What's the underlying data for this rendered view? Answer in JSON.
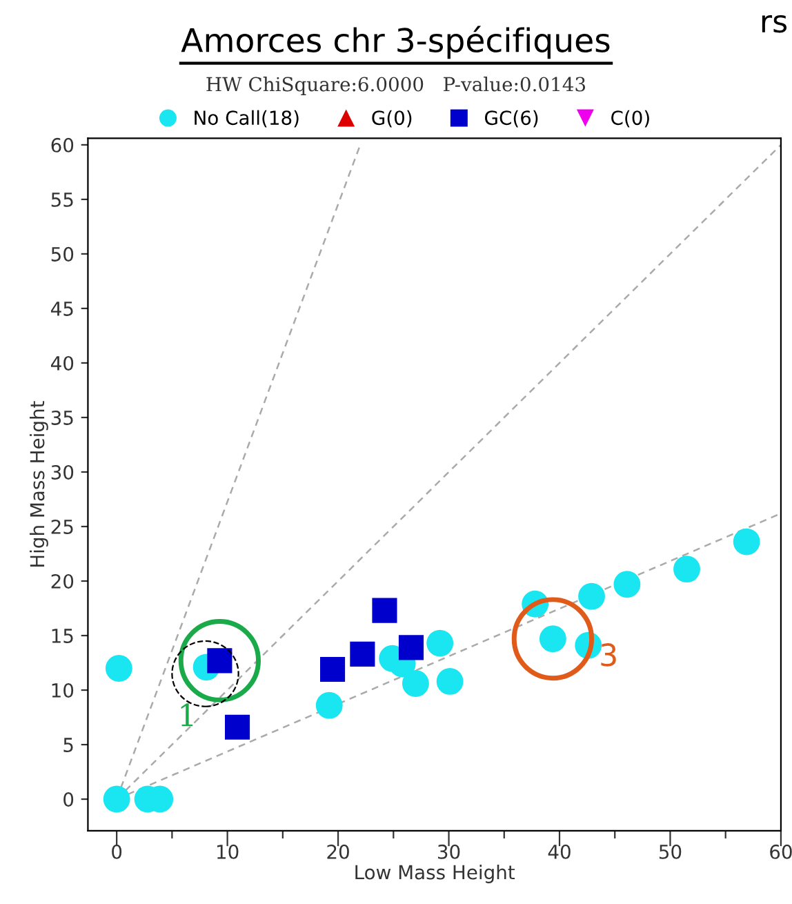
{
  "chart_data": {
    "type": "scatter",
    "title": "Amorces chr 3-spécifiques",
    "subtitle": "HW ChiSquare:6.0000   P-value:0.0143",
    "xlabel": "Low Mass Height",
    "ylabel": "High Mass Height",
    "xlim": [
      -2.6,
      60
    ],
    "ylim": [
      -2.9,
      60.6
    ],
    "xticks": [
      0,
      {
        "value": 5,
        "label": null
      },
      10,
      {
        "value": 15,
        "label": null
      },
      20,
      {
        "value": 25,
        "label": null
      },
      30,
      {
        "value": 35,
        "label": null
      },
      40,
      {
        "value": 45,
        "label": null
      },
      50,
      {
        "value": 55,
        "label": null
      },
      60
    ],
    "yticks": [
      0,
      5,
      10,
      15,
      20,
      25,
      30,
      35,
      40,
      45,
      50,
      55,
      60
    ],
    "grid": false,
    "legend": "top",
    "series": [
      {
        "name": "No Call(18)",
        "color": "#19e6f0",
        "marker": "circle",
        "x": [
          0,
          2.8,
          3.9,
          0.2,
          8.1,
          19.2,
          24.9,
          25.8,
          27.0,
          29.2,
          30.1,
          37.8,
          39.4,
          42.6,
          42.9,
          46.1,
          51.5,
          56.9
        ],
        "values": [
          0,
          0,
          0,
          12.0,
          12.1,
          8.6,
          12.9,
          12.4,
          10.6,
          14.3,
          10.8,
          17.9,
          14.7,
          14.1,
          18.6,
          19.7,
          21.1,
          23.6
        ]
      },
      {
        "name": "G(0)",
        "color": "#dd0000",
        "marker": "triangle"
      },
      {
        "name": "GC(6)",
        "color": "#0000cc",
        "marker": "square",
        "x": [
          9.3,
          10.9,
          19.5,
          22.2,
          24.2,
          26.6
        ],
        "values": [
          12.7,
          6.6,
          11.9,
          13.3,
          17.3,
          13.9
        ]
      },
      {
        "name": "C(0)",
        "color": "#ee00ee",
        "marker": "triangle_down"
      },
      {
        "type": "line",
        "color": "#aaaaaa",
        "line_style": "dashed",
        "marker": "none",
        "x": [
          0,
          22
        ],
        "values": [
          0,
          60
        ]
      },
      {
        "type": "line",
        "color": "#aaaaaa",
        "line_style": "dashed",
        "marker": "none",
        "x": [
          0,
          60
        ],
        "values": [
          0,
          60
        ]
      },
      {
        "type": "line",
        "color": "#aaaaaa",
        "line_style": "dashed",
        "marker": "none",
        "x": [
          0,
          60
        ],
        "values": [
          0,
          26.2
        ]
      }
    ],
    "annotations": [
      {
        "text": "1",
        "x": 9.3,
        "y": 12.7
      },
      {
        "text": "3",
        "x": 39.4,
        "y": 14.7
      },
      "rs"
    ]
  }
}
